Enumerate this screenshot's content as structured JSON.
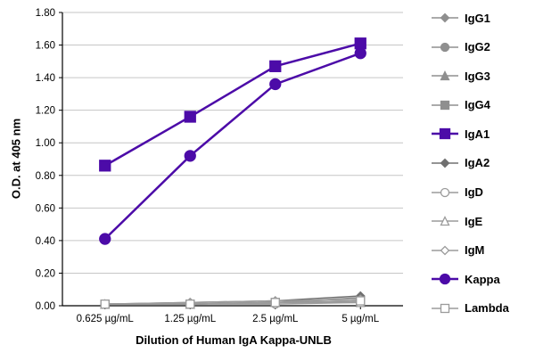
{
  "chart_data": {
    "type": "line",
    "title": "",
    "xlabel": "Dilution of Human IgA Kappa-UNLB",
    "ylabel": "O.D. at 405 nm",
    "categories": [
      "0.625 µg/mL",
      "1.25 µg/mL",
      "2.5 µg/mL",
      "5 µg/mL"
    ],
    "ylim": [
      0,
      1.8
    ],
    "ytick_step": 0.2,
    "grid": true,
    "legend_position": "right",
    "colors": {
      "accent_purple": "#4c0ba8",
      "gray": "#8f8f8f",
      "dark_gray": "#707070",
      "light_gray": "#9b9b9b",
      "gridline": "#c6c6c6"
    },
    "series": [
      {
        "name": "IgG1",
        "values": [
          0.01,
          0.01,
          0.02,
          0.05
        ],
        "color": "#8f8f8f",
        "marker": "diamond",
        "fill": true,
        "lw": 1.5,
        "size": 4.5
      },
      {
        "name": "IgG2",
        "values": [
          0.01,
          0.01,
          0.02,
          0.03
        ],
        "color": "#8f8f8f",
        "marker": "circle",
        "fill": true,
        "lw": 1.5,
        "size": 4.5
      },
      {
        "name": "IgG3",
        "values": [
          0.01,
          0.01,
          0.02,
          0.03
        ],
        "color": "#8f8f8f",
        "marker": "triangle",
        "fill": true,
        "lw": 1.5,
        "size": 4.5
      },
      {
        "name": "IgG4",
        "values": [
          0.01,
          0.01,
          0.02,
          0.03
        ],
        "color": "#8f8f8f",
        "marker": "square",
        "fill": true,
        "lw": 1.5,
        "size": 4.5
      },
      {
        "name": "IgA1",
        "values": [
          0.86,
          1.16,
          1.47,
          1.61
        ],
        "color": "#4c0ba8",
        "marker": "square",
        "fill": true,
        "lw": 2.5,
        "size": 6
      },
      {
        "name": "IgA2",
        "values": [
          0.01,
          0.02,
          0.03,
          0.06
        ],
        "color": "#707070",
        "marker": "diamond",
        "fill": true,
        "lw": 1.5,
        "size": 4.5
      },
      {
        "name": "IgD",
        "values": [
          0.01,
          0.01,
          0.01,
          0.02
        ],
        "color": "#9b9b9b",
        "marker": "circle",
        "fill": false,
        "lw": 1.5,
        "size": 4.5
      },
      {
        "name": "IgE",
        "values": [
          0.01,
          0.01,
          0.02,
          0.02
        ],
        "color": "#9b9b9b",
        "marker": "triangle",
        "fill": false,
        "lw": 1.5,
        "size": 4.5
      },
      {
        "name": "IgM",
        "values": [
          0.01,
          0.02,
          0.03,
          0.04
        ],
        "color": "#9b9b9b",
        "marker": "diamond",
        "fill": false,
        "lw": 1.5,
        "size": 4.5
      },
      {
        "name": "Kappa",
        "values": [
          0.41,
          0.92,
          1.36,
          1.55
        ],
        "color": "#4c0ba8",
        "marker": "circle",
        "fill": true,
        "lw": 2.5,
        "size": 6
      },
      {
        "name": "Lambda",
        "values": [
          0.01,
          0.01,
          0.02,
          0.03
        ],
        "color": "#9b9b9b",
        "marker": "square",
        "fill": false,
        "lw": 1.5,
        "size": 4.5
      }
    ]
  }
}
